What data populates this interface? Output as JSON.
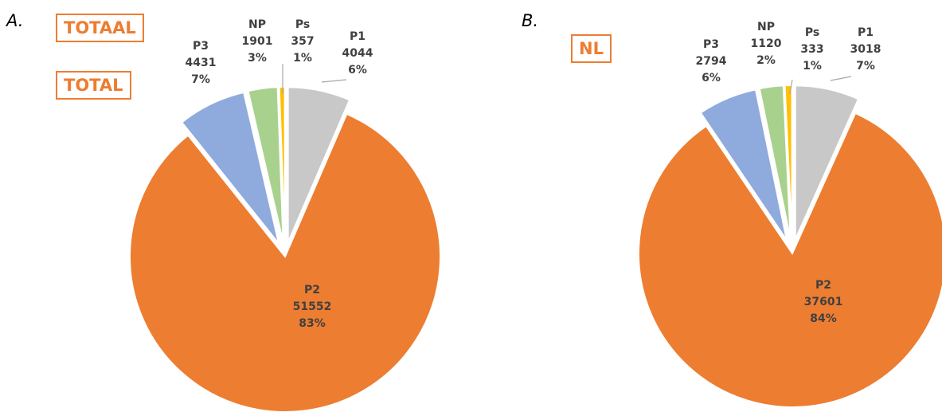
{
  "panels": [
    {
      "letter": "A.",
      "titles": [
        "TOTAAL",
        "TOTAL"
      ]
    },
    {
      "letter": "B.",
      "titles": [
        "NL"
      ]
    }
  ],
  "chart_data": [
    {
      "type": "pie",
      "title": "TOTAAL / TOTAL",
      "slices": [
        {
          "name": "P1",
          "value": 4044,
          "percent": "6%",
          "color": "#C8C8C8",
          "exploded": true
        },
        {
          "name": "P2",
          "value": 51552,
          "percent": "83%",
          "color": "#ED7D31",
          "exploded": false
        },
        {
          "name": "P3",
          "value": 4431,
          "percent": "7%",
          "color": "#8FAADC",
          "exploded": true
        },
        {
          "name": "NP",
          "value": 1901,
          "percent": "3%",
          "color": "#A9D18E",
          "exploded": true
        },
        {
          "name": "Ps",
          "value": 357,
          "percent": "1%",
          "color": "#FFC000",
          "exploded": true
        }
      ]
    },
    {
      "type": "pie",
      "title": "NL",
      "slices": [
        {
          "name": "P1",
          "value": 3018,
          "percent": "7%",
          "color": "#C8C8C8",
          "exploded": true
        },
        {
          "name": "P2",
          "value": 37601,
          "percent": "84%",
          "color": "#ED7D31",
          "exploded": false
        },
        {
          "name": "P3",
          "value": 2794,
          "percent": "6%",
          "color": "#8FAADC",
          "exploded": true
        },
        {
          "name": "NP",
          "value": 1120,
          "percent": "2%",
          "color": "#A9D18E",
          "exploded": true
        },
        {
          "name": "Ps",
          "value": 333,
          "percent": "1%",
          "color": "#FFC000",
          "exploded": true
        }
      ]
    }
  ]
}
